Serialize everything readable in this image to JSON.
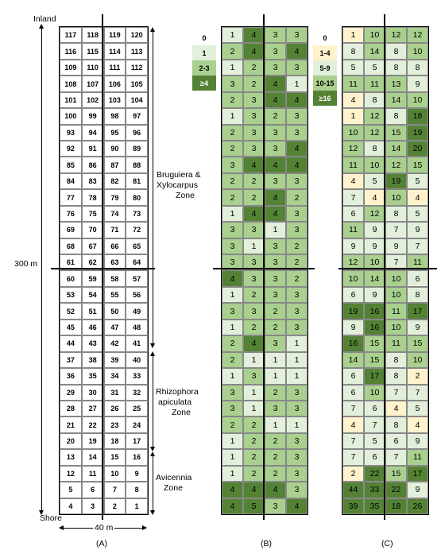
{
  "labels": {
    "inland": "Inland",
    "shore": "Shore",
    "height": "300 m",
    "width": "40 m",
    "panel_a": "(A)",
    "panel_b": "(B)",
    "panel_c": "(C)"
  },
  "zones": [
    {
      "name": "Bruguiera & Xylocarpus Zone",
      "lines": [
        "Bruguiera &",
        "Xylocarpus",
        "Zone"
      ]
    },
    {
      "name": "Rhizophora apiculata Zone",
      "lines": [
        "Rhizophora",
        "apiculata",
        "Zone"
      ]
    },
    {
      "name": "Avicennia Zone",
      "lines": [
        "Avicennia",
        "Zone"
      ]
    }
  ],
  "legend_b": [
    {
      "label": "0",
      "color": "#ffffff"
    },
    {
      "label": "1",
      "color": "#e2efda"
    },
    {
      "label": "2-3",
      "color": "#a9d08e"
    },
    {
      "label": "≥4",
      "color": "#548235"
    }
  ],
  "legend_c": [
    {
      "label": "0",
      "color": "#ffffff"
    },
    {
      "label": "1-4",
      "color": "#fff2cc"
    },
    {
      "label": "5-9",
      "color": "#e2efda"
    },
    {
      "label": "10-15",
      "color": "#a9d08e"
    },
    {
      "label": "≥16",
      "color": "#548235"
    }
  ],
  "plot_numbers": [
    [
      117,
      118,
      119,
      120
    ],
    [
      116,
      115,
      114,
      113
    ],
    [
      109,
      110,
      111,
      112
    ],
    [
      108,
      107,
      106,
      105
    ],
    [
      101,
      102,
      103,
      104
    ],
    [
      100,
      99,
      98,
      97
    ],
    [
      93,
      94,
      95,
      96
    ],
    [
      92,
      91,
      90,
      89
    ],
    [
      85,
      86,
      87,
      88
    ],
    [
      84,
      83,
      82,
      81
    ],
    [
      77,
      78,
      79,
      80
    ],
    [
      76,
      75,
      74,
      73
    ],
    [
      69,
      70,
      71,
      72
    ],
    [
      68,
      67,
      66,
      65
    ],
    [
      61,
      62,
      63,
      64
    ],
    [
      60,
      59,
      58,
      57
    ],
    [
      53,
      54,
      55,
      56
    ],
    [
      52,
      51,
      50,
      49
    ],
    [
      45,
      46,
      47,
      48
    ],
    [
      44,
      43,
      42,
      41
    ],
    [
      37,
      38,
      39,
      40
    ],
    [
      36,
      35,
      34,
      33
    ],
    [
      29,
      30,
      31,
      32
    ],
    [
      28,
      27,
      26,
      25
    ],
    [
      21,
      22,
      23,
      24
    ],
    [
      20,
      19,
      18,
      17
    ],
    [
      13,
      14,
      15,
      16
    ],
    [
      12,
      11,
      10,
      9
    ],
    [
      5,
      6,
      7,
      8
    ],
    [
      4,
      3,
      2,
      1
    ]
  ],
  "grid_b": [
    [
      1,
      4,
      3,
      3
    ],
    [
      2,
      4,
      3,
      4
    ],
    [
      1,
      2,
      3,
      3
    ],
    [
      3,
      2,
      4,
      1
    ],
    [
      2,
      3,
      4,
      4
    ],
    [
      1,
      3,
      2,
      3
    ],
    [
      2,
      3,
      3,
      3
    ],
    [
      2,
      3,
      3,
      4
    ],
    [
      3,
      4,
      4,
      4
    ],
    [
      2,
      2,
      3,
      3
    ],
    [
      2,
      2,
      4,
      2
    ],
    [
      1,
      4,
      4,
      3
    ],
    [
      3,
      3,
      1,
      3
    ],
    [
      3,
      1,
      3,
      2
    ],
    [
      3,
      3,
      3,
      2
    ],
    [
      4,
      3,
      3,
      2
    ],
    [
      1,
      2,
      3,
      3
    ],
    [
      3,
      3,
      2,
      3
    ],
    [
      1,
      2,
      2,
      3
    ],
    [
      2,
      4,
      3,
      1
    ],
    [
      2,
      1,
      1,
      1
    ],
    [
      1,
      3,
      1,
      1
    ],
    [
      3,
      1,
      2,
      3
    ],
    [
      3,
      1,
      3,
      3
    ],
    [
      2,
      2,
      1,
      1
    ],
    [
      1,
      2,
      2,
      3
    ],
    [
      1,
      2,
      2,
      3
    ],
    [
      1,
      2,
      2,
      3
    ],
    [
      4,
      4,
      4,
      3
    ],
    [
      4,
      5,
      3,
      4
    ]
  ],
  "grid_c": [
    [
      1,
      10,
      12,
      12
    ],
    [
      8,
      14,
      8,
      10
    ],
    [
      5,
      5,
      8,
      8
    ],
    [
      11,
      11,
      13,
      9
    ],
    [
      4,
      8,
      14,
      10
    ],
    [
      1,
      12,
      8,
      18
    ],
    [
      10,
      12,
      15,
      19
    ],
    [
      12,
      8,
      14,
      20
    ],
    [
      11,
      10,
      12,
      15
    ],
    [
      4,
      5,
      19,
      5
    ],
    [
      7,
      4,
      10,
      4
    ],
    [
      6,
      12,
      8,
      5
    ],
    [
      11,
      9,
      7,
      9
    ],
    [
      9,
      9,
      9,
      7
    ],
    [
      12,
      10,
      7,
      11
    ],
    [
      10,
      14,
      10,
      6
    ],
    [
      6,
      9,
      10,
      8
    ],
    [
      19,
      16,
      11,
      17
    ],
    [
      9,
      16,
      10,
      9
    ],
    [
      16,
      15,
      11,
      15
    ],
    [
      14,
      15,
      8,
      10
    ],
    [
      6,
      17,
      8,
      2
    ],
    [
      6,
      10,
      7,
      7
    ],
    [
      7,
      6,
      4,
      5
    ],
    [
      4,
      7,
      8,
      4
    ],
    [
      7,
      5,
      6,
      9
    ],
    [
      7,
      6,
      7,
      11
    ],
    [
      2,
      22,
      15,
      17
    ],
    [
      44,
      33,
      22,
      9
    ],
    [
      39,
      35,
      18,
      26
    ]
  ]
}
